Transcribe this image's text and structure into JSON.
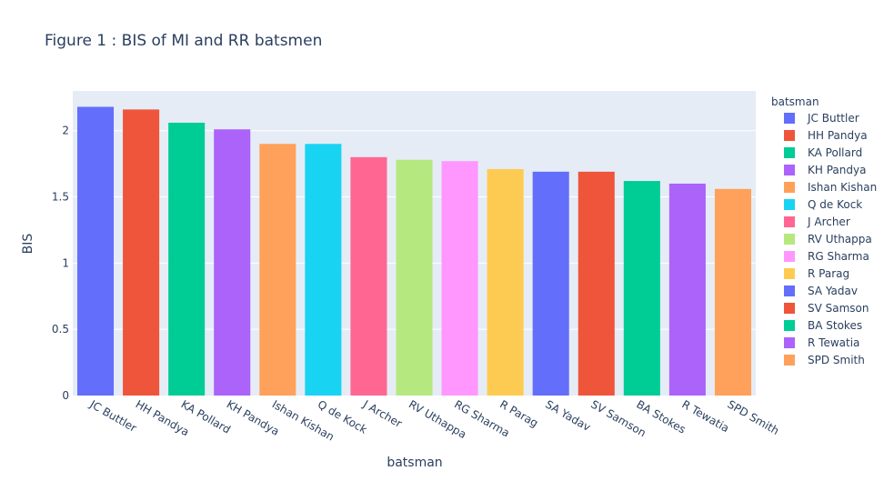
{
  "chart_data": {
    "type": "bar",
    "title": "Figure 1 : BIS of MI and RR batsmen",
    "xlabel": "batsman",
    "ylabel": "BIS",
    "ylim": [
      0,
      2.3
    ],
    "yticks": [
      "0",
      "0.5",
      "1",
      "1.5",
      "2"
    ],
    "grid": true,
    "legend_title": "batsman",
    "legend_position": "right",
    "categories": [
      "JC Buttler",
      "HH Pandya",
      "KA Pollard",
      "KH Pandya",
      "Ishan Kishan",
      "Q de Kock",
      "J Archer",
      "RV Uthappa",
      "RG Sharma",
      "R Parag",
      "SA Yadav",
      "SV Samson",
      "BA Stokes",
      "R Tewatia",
      "SPD Smith"
    ],
    "values": [
      2.18,
      2.16,
      2.06,
      2.01,
      1.9,
      1.9,
      1.8,
      1.78,
      1.77,
      1.71,
      1.69,
      1.69,
      1.62,
      1.6,
      1.56
    ],
    "colors": [
      "#636efa",
      "#EF553B",
      "#00cc96",
      "#ab63fa",
      "#FFA15A",
      "#19d3f3",
      "#FF6692",
      "#B6E880",
      "#FF97FF",
      "#FECB52",
      "#636efa",
      "#EF553B",
      "#00cc96",
      "#ab63fa",
      "#FFA15A"
    ],
    "plot_bg": "#E5ECF6"
  }
}
